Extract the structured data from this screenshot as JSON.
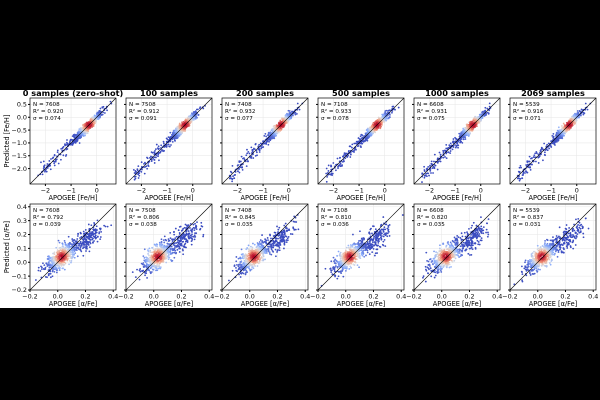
{
  "chart_data": {
    "type": "scatter",
    "panel_titles": [
      "0 samples (zero-shot)",
      "100 samples",
      "200 samples",
      "500 samples",
      "1000 samples",
      "2069 samples"
    ],
    "rows": [
      {
        "xlabel": "APOGEE [Fe/H]",
        "ylabel": "Predicted [Fe/H]",
        "xlim": [
          -2.6,
          0.75
        ],
        "ylim": [
          -2.6,
          0.75
        ],
        "xticks": [
          -2,
          -1,
          0
        ],
        "yticks": [
          0.5,
          0.0,
          -0.5,
          -1.0,
          -1.5,
          -2.0
        ],
        "ytick_labels": [
          "0.5",
          "0.0",
          "−0.5",
          "−1.0",
          "−1.5",
          "−2.0"
        ],
        "xtick_labels": [
          "−2",
          "−1",
          "0"
        ],
        "stats": [
          {
            "N": "N = 7608",
            "R2": "R² = 0.920",
            "sigma": "σ = 0.074"
          },
          {
            "N": "N = 7508",
            "R2": "R² = 0.912",
            "sigma": "σ = 0.091"
          },
          {
            "N": "N = 7408",
            "R2": "R² = 0.932",
            "sigma": "σ = 0.077"
          },
          {
            "N": "N = 7108",
            "R2": "R² = 0.933",
            "sigma": "σ = 0.078"
          },
          {
            "N": "N = 6608",
            "R2": "R² = 0.931",
            "sigma": "σ = 0.075"
          },
          {
            "N": "N = 5539",
            "R2": "R² = 0.916",
            "sigma": "σ = 0.071"
          }
        ]
      },
      {
        "xlabel": "APOGEE [α/Fe]",
        "ylabel": "Predicted [α/Fe]",
        "xlim": [
          -0.2,
          0.42
        ],
        "ylim": [
          -0.2,
          0.42
        ],
        "xticks": [
          -0.2,
          0.0,
          0.2,
          0.4
        ],
        "yticks": [
          0.4,
          0.3,
          0.2,
          0.1,
          0.0,
          -0.1,
          -0.2
        ],
        "ytick_labels": [
          "0.4",
          "0.3",
          "0.2",
          "0.1",
          "0.0",
          "−0.1",
          "−0.2"
        ],
        "xtick_labels": [
          "−0.2",
          "0.0",
          "0.2",
          "0.4"
        ],
        "stats": [
          {
            "N": "N = 7608",
            "R2": "R² = 0.792",
            "sigma": "σ = 0.039"
          },
          {
            "N": "N = 7508",
            "R2": "R² = 0.806",
            "sigma": "σ = 0.038"
          },
          {
            "N": "N = 7408",
            "R2": "R² = 0.845",
            "sigma": "σ = 0.035"
          },
          {
            "N": "N = 7108",
            "R2": "R² = 0.810",
            "sigma": "σ = 0.036"
          },
          {
            "N": "N = 6608",
            "R2": "R² = 0.820",
            "sigma": "σ = 0.035"
          },
          {
            "N": "N = 5539",
            "R2": "R² = 0.837",
            "sigma": "σ = 0.031"
          }
        ]
      }
    ],
    "colors": {
      "low": "#3b4cc0",
      "mid": "#8db0fe",
      "high": "#b40426",
      "identity": "#000000",
      "grid": "#e6e6e6"
    },
    "grid": true,
    "identity_line": true
  }
}
